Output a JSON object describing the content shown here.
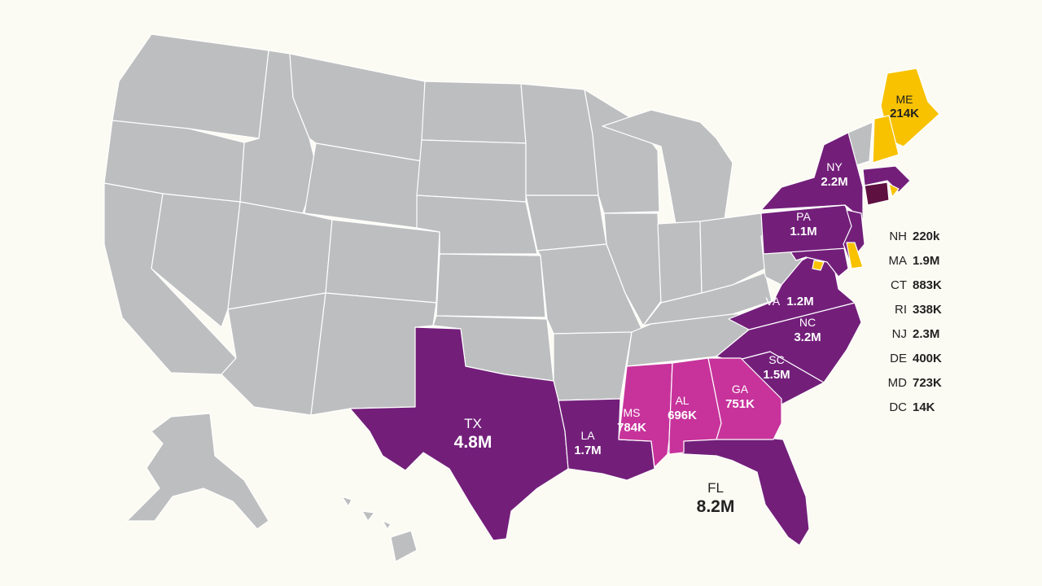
{
  "colors": {
    "background": "#fcfbf3",
    "no_data": "#bdbebf",
    "high": "#731f7a",
    "mid": "#c7339b",
    "low": "#f8c200",
    "highest": "#5e1040"
  },
  "map_labels": [
    {
      "id": "TX",
      "abbr": "TX",
      "value": "4.8M"
    },
    {
      "id": "FL",
      "abbr": "FL",
      "value": "8.2M"
    },
    {
      "id": "LA",
      "abbr": "LA",
      "value": "1.7M"
    },
    {
      "id": "MS",
      "abbr": "MS",
      "value": "784K"
    },
    {
      "id": "AL",
      "abbr": "AL",
      "value": "696K"
    },
    {
      "id": "GA",
      "abbr": "GA",
      "value": "751K"
    },
    {
      "id": "SC",
      "abbr": "SC",
      "value": "1.5M"
    },
    {
      "id": "NC",
      "abbr": "NC",
      "value": "3.2M"
    },
    {
      "id": "VA",
      "abbr": "VA",
      "value": "1.2M"
    },
    {
      "id": "PA",
      "abbr": "PA",
      "value": "1.1M"
    },
    {
      "id": "NY",
      "abbr": "NY",
      "value": "2.2M"
    },
    {
      "id": "ME",
      "abbr": "ME",
      "value": "214K"
    }
  ],
  "legend": [
    {
      "state": "NH",
      "value": "220k"
    },
    {
      "state": "MA",
      "value": "1.9M"
    },
    {
      "state": "CT",
      "value": "883K"
    },
    {
      "state": "RI",
      "value": "338K"
    },
    {
      "state": "NJ",
      "value": "2.3M"
    },
    {
      "state": "DE",
      "value": "400K"
    },
    {
      "state": "MD",
      "value": "723K"
    },
    {
      "state": "DC",
      "value": "14K"
    }
  ]
}
